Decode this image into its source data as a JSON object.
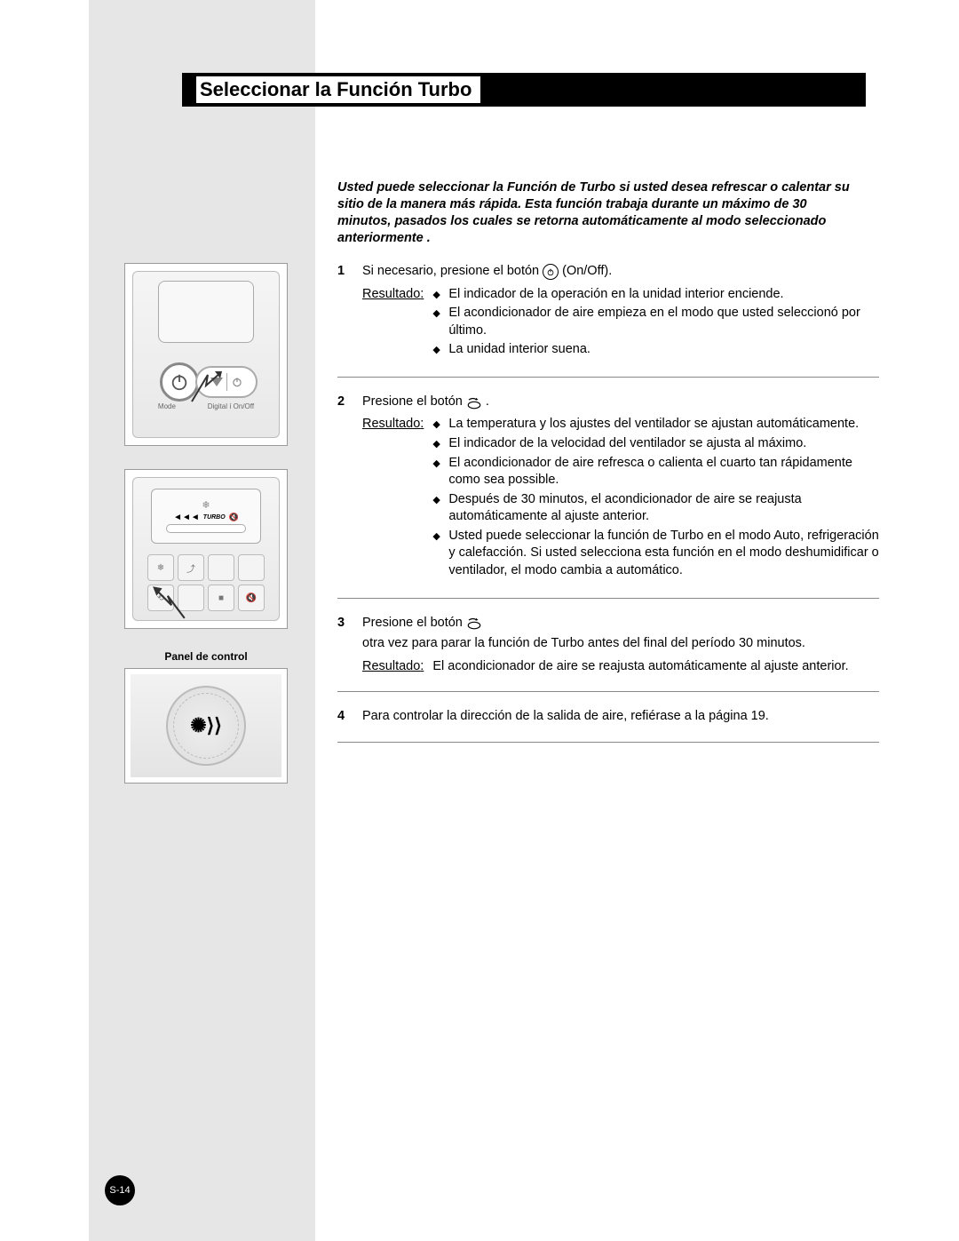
{
  "title": "Seleccionar la Función Turbo",
  "intro": "Usted puede seleccionar la Función de Turbo si usted desea refrescar o calentar su sitio de la manera más rápida. Esta función trabaja durante un máximo de 30 minutos, pasados los cuales se retorna automáticamente al modo seleccionado anteriormente .",
  "panel_label": "Panel de control",
  "resultado_label": "Resultado",
  "remote1": {
    "mode_label": "Mode",
    "digital_label": "Digital í On/Off"
  },
  "remote2": {
    "turbo_label": "TURBO"
  },
  "steps": [
    {
      "num": "1",
      "text_before": "Si necesario, presione el botón",
      "icon": "power",
      "text_after": "(On/Off).",
      "results": [
        "El indicador de la operación en la unidad interior enciende.",
        "El acondicionador de aire empieza en el modo que usted seleccionó por último.",
        "La unidad interior suena."
      ]
    },
    {
      "num": "2",
      "text_before": "Presione el botón",
      "icon": "turbo",
      "text_after": ".",
      "results": [
        "La temperatura y los ajustes del ventilador se ajustan automáticamente.",
        "El indicador de la velocidad del ventilador se ajusta al máximo.",
        "El acondicionador de aire refresca o calienta el cuarto tan rápidamente como sea possible.",
        "Después de 30 minutos, el acondicionador de aire se reajusta automáticamente al ajuste anterior.",
        "Usted puede seleccionar la función de Turbo en el modo Auto, refrigeración y calefacción. Si usted selecciona esta función en el modo deshumidificar o ventilador, el modo cambia a automático."
      ]
    },
    {
      "num": "3",
      "text_before": "Presione el botón",
      "icon": "turbo",
      "text_after": "otra vez para parar la función de Turbo antes del final del período 30 minutos.",
      "result_plain": "El acondicionador de aire se reajusta automáticamente al ajuste anterior."
    },
    {
      "num": "4",
      "text_before": "Para controlar la dirección de la salida de aire, refiérase a la página 19.",
      "icon": null,
      "text_after": ""
    }
  ],
  "page_number": "S-14",
  "colors": {
    "page_bg": "#ffffff",
    "sidebar_bg": "#e6e6e6",
    "title_bg": "#000000",
    "title_text_bg": "#ffffff",
    "rule": "#888888"
  }
}
